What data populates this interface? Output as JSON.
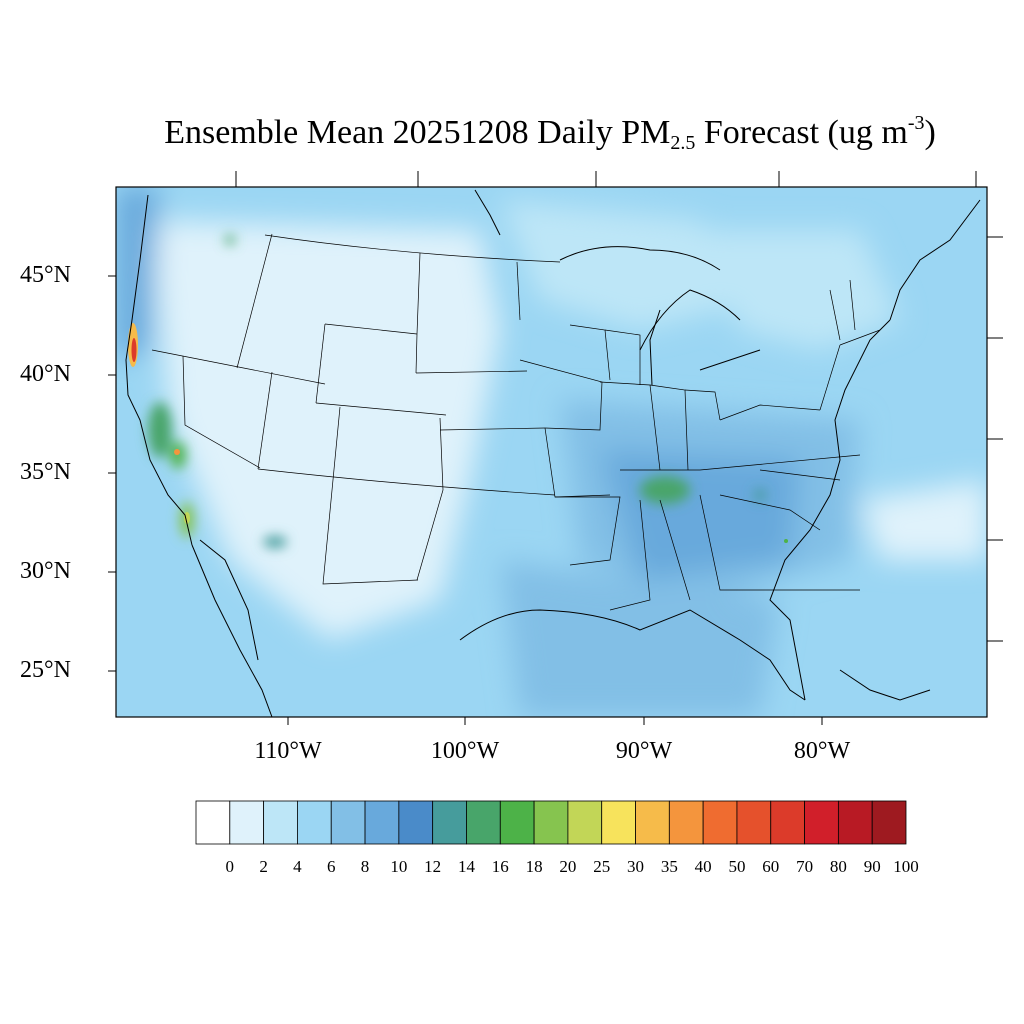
{
  "title": {
    "prefix": "Ensemble Mean 20251208 Daily PM",
    "subscript": "2.5",
    "middle": " Forecast (ug m",
    "superscript": "-3",
    "suffix": ")"
  },
  "map": {
    "lat_labels": [
      "45°N",
      "40°N",
      "35°N",
      "30°N",
      "25°N"
    ],
    "lon_labels": [
      "110°W",
      "100°W",
      "90°W",
      "80°W"
    ],
    "colors": {
      "frame": "#000000",
      "coast": "#000000",
      "state_lines": "#333333"
    }
  },
  "colorbar": {
    "labels": [
      "0",
      "2",
      "4",
      "6",
      "8",
      "10",
      "12",
      "14",
      "16",
      "18",
      "20",
      "25",
      "30",
      "35",
      "40",
      "50",
      "60",
      "70",
      "80",
      "90",
      "100"
    ],
    "colors": [
      "#ffffff",
      "#dff2fb",
      "#bde6f7",
      "#9bd6f3",
      "#82bfe6",
      "#68a9dc",
      "#4a8bc9",
      "#469c9c",
      "#48a56a",
      "#4db248",
      "#86c44f",
      "#c2d657",
      "#f7e35c",
      "#f6bb4a",
      "#f4953d",
      "#ef6c30",
      "#e5512c",
      "#dc3b2a",
      "#d11f2a",
      "#b81a24",
      "#9e1a20"
    ]
  }
}
